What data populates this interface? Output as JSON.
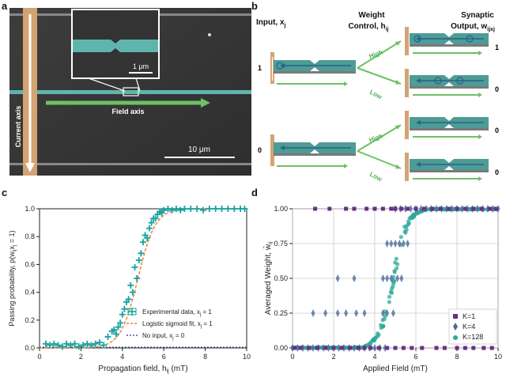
{
  "panel_labels": {
    "a": "a",
    "b": "b",
    "c": "c",
    "d": "d"
  },
  "panel_a": {
    "scale_inset": "1 μm",
    "scale_main": "10 μm",
    "field_axis": "Field axis",
    "current_axis": "Current axis",
    "colors": {
      "background": "#3a3a3a",
      "wire": "#5fb5ad",
      "current": "#d4a373",
      "field_arrow": "#6ec065"
    }
  },
  "panel_b": {
    "input_label": "Input, x",
    "input_sub": "j",
    "weight_label": "Weight",
    "weight_label2": "Control, h",
    "weight_sub": "ij",
    "output_label": "Synaptic",
    "output_label2": "Output, w",
    "output_sub": "ijx",
    "output_sub2": "j",
    "input_values": [
      "1",
      "0"
    ],
    "high": "High",
    "low": "Low",
    "output_values": [
      "1",
      "0",
      "0",
      "0"
    ]
  },
  "chart_data": [
    {
      "type": "scatter",
      "xlabel": "Propagation field, h",
      "xlabel_sub": "ij",
      "xlabel_unit": " (mT)",
      "ylabel": "Passing probability, p(w",
      "ylabel_sub": "ij",
      "ylabel_end": "x",
      "ylabel_sub2": "j",
      "ylabel_tail": " = 1)",
      "xlim": [
        0,
        10
      ],
      "ylim": [
        0,
        1.0
      ],
      "x_ticks": [
        "0",
        "2",
        "4",
        "6",
        "8",
        "10"
      ],
      "y_ticks": [
        "0.0",
        "0.2",
        "0.4",
        "0.6",
        "0.8",
        "1.0"
      ],
      "series": [
        {
          "name": "Experimental data, x",
          "name_sub": "j",
          "name_end": " = 1",
          "color": "#17a2a2",
          "x": [
            0.3,
            0.5,
            0.7,
            0.9,
            1.1,
            1.3,
            1.5,
            1.7,
            1.9,
            2.1,
            2.3,
            2.5,
            2.7,
            2.9,
            3.1,
            3.3,
            3.5,
            3.6,
            3.7,
            3.8,
            3.9,
            4.0,
            4.1,
            4.2,
            4.3,
            4.4,
            4.5,
            4.6,
            4.7,
            4.8,
            4.9,
            5.0,
            5.1,
            5.2,
            5.3,
            5.4,
            5.5,
            5.6,
            5.7,
            5.8,
            5.9,
            6.0,
            6.2,
            6.4,
            6.6,
            6.8,
            7.0,
            7.3,
            7.6,
            7.9,
            8.2,
            8.5,
            8.8,
            9.1,
            9.4,
            9.7,
            9.9
          ],
          "y": [
            0.03,
            0.02,
            0.03,
            0.02,
            0.01,
            0.03,
            0.02,
            0.03,
            0.01,
            0.02,
            0.03,
            0.02,
            0.03,
            0.04,
            0.02,
            0.08,
            0.12,
            0.13,
            0.1,
            0.15,
            0.18,
            0.24,
            0.28,
            0.33,
            0.35,
            0.45,
            0.4,
            0.58,
            0.5,
            0.63,
            0.68,
            0.76,
            0.81,
            0.79,
            0.86,
            0.9,
            0.93,
            0.93,
            0.96,
            0.98,
            0.97,
            0.99,
            1.0,
            0.99,
            1.0,
            0.99,
            1.0,
            1.0,
            1.0,
            0.99,
            1.0,
            1.0,
            1.0,
            1.0,
            1.0,
            1.0,
            1.0
          ]
        },
        {
          "name": "Logistic sigmoid fit, x",
          "name_sub": "j",
          "name_end": " = 1",
          "color": "#e8873a"
        },
        {
          "name": "No input, x",
          "name_sub": "j",
          "name_end": " = 0",
          "color": "#2c3e8c"
        }
      ]
    },
    {
      "type": "scatter",
      "xlabel": "Applied Field (mT)",
      "ylabel": "Averaged Weight, ",
      "ylabel_sym": "w̄",
      "ylabel_sub": "ij",
      "xlim": [
        0,
        10
      ],
      "ylim": [
        0,
        1.0
      ],
      "x_ticks": [
        "0",
        "2",
        "4",
        "6",
        "8",
        "10"
      ],
      "y_ticks": [
        "0.00",
        "0.25",
        "0.50",
        "0.75",
        "1.00"
      ],
      "series": [
        {
          "name": "K=1",
          "color": "#6a2f86"
        },
        {
          "name": "K=4",
          "color": "#4a6c96"
        },
        {
          "name": "K=128",
          "color": "#2ca89a"
        }
      ]
    }
  ]
}
